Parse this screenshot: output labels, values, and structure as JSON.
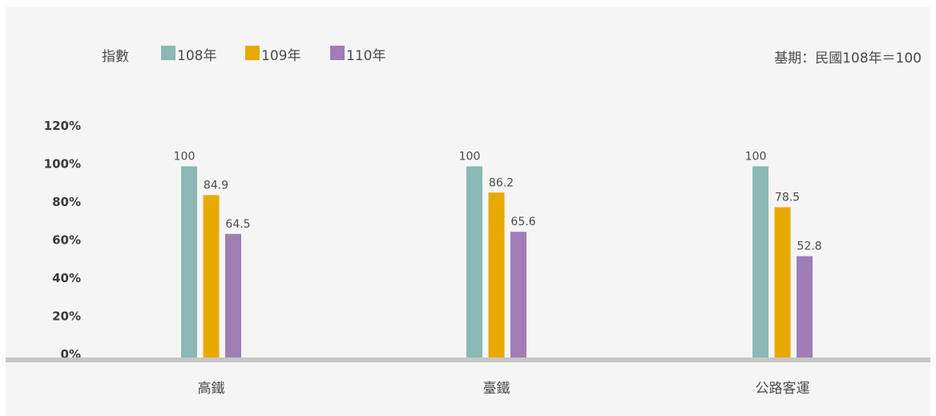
{
  "chart_data": {
    "type": "bar",
    "legend_title": "指數",
    "baseline_note": "基期：民國108年＝100",
    "categories": [
      "高鐵",
      "臺鐵",
      "公路客運"
    ],
    "series": [
      {
        "name": "108年",
        "color": "#8bb8b4",
        "values": [
          100,
          100,
          100
        ]
      },
      {
        "name": "109年",
        "color": "#e8aa00",
        "values": [
          84.9,
          86.2,
          78.5
        ]
      },
      {
        "name": "110年",
        "color": "#a07db5",
        "values": [
          64.5,
          65.6,
          52.8
        ]
      }
    ],
    "y_ticks": [
      "120%",
      "100%",
      "80%",
      "60%",
      "40%",
      "20%",
      "0%"
    ],
    "ylim": [
      0,
      120
    ],
    "grid": false,
    "legend_position": "top-left"
  }
}
